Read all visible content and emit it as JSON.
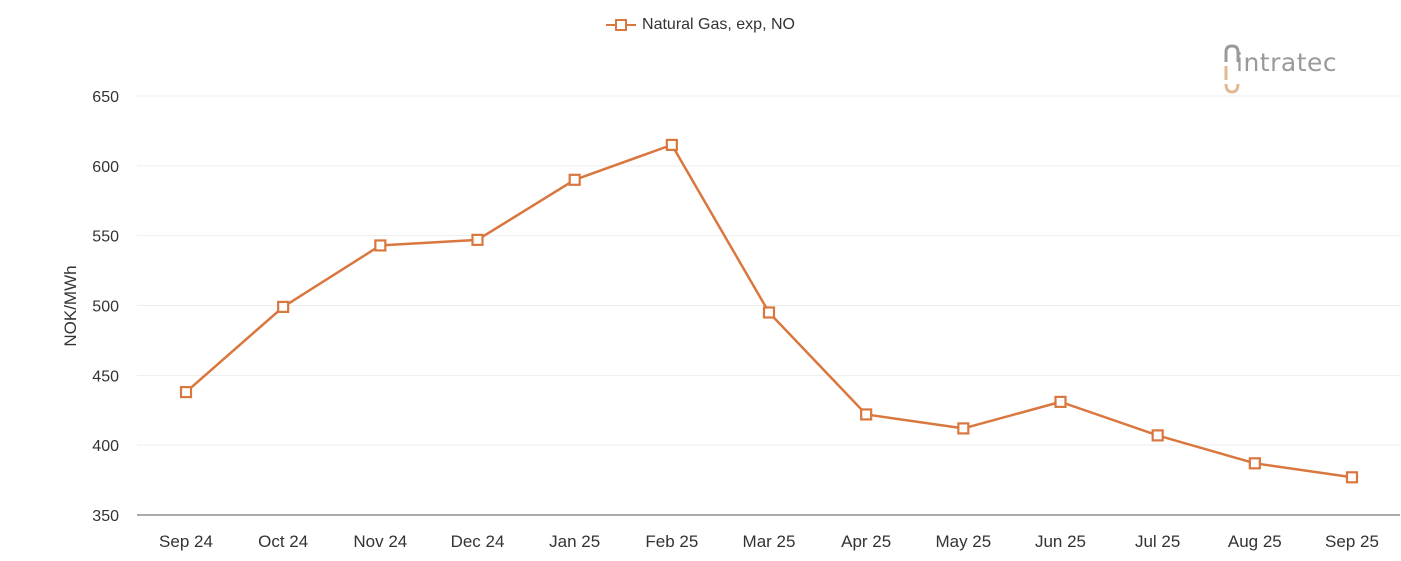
{
  "legend": {
    "label": "Natural Gas, exp, NO"
  },
  "logo": {
    "text": "intratec"
  },
  "colors": {
    "series": "#D9773E",
    "grid": "#eeeeee",
    "axis": "#555555",
    "logo_text": "#9a9a9a",
    "logo_accent": "#E3B893"
  },
  "chart_data": {
    "type": "line",
    "title": "",
    "xlabel": "",
    "ylabel": "NOK/MWh",
    "ylim": [
      350,
      650
    ],
    "yticks": [
      350,
      400,
      450,
      500,
      550,
      600,
      650
    ],
    "grid": true,
    "legend_position": "top",
    "categories": [
      "Sep 24",
      "Oct 24",
      "Nov 24",
      "Dec 24",
      "Jan 25",
      "Feb 25",
      "Mar 25",
      "Apr 25",
      "May 25",
      "Jun 25",
      "Jul 25",
      "Aug 25",
      "Sep 25"
    ],
    "series": [
      {
        "name": "Natural Gas, exp, NO",
        "marker": "hollow-square",
        "values": [
          438,
          499,
          543,
          547,
          590,
          615,
          495,
          422,
          412,
          431,
          407,
          387,
          377
        ]
      }
    ]
  }
}
